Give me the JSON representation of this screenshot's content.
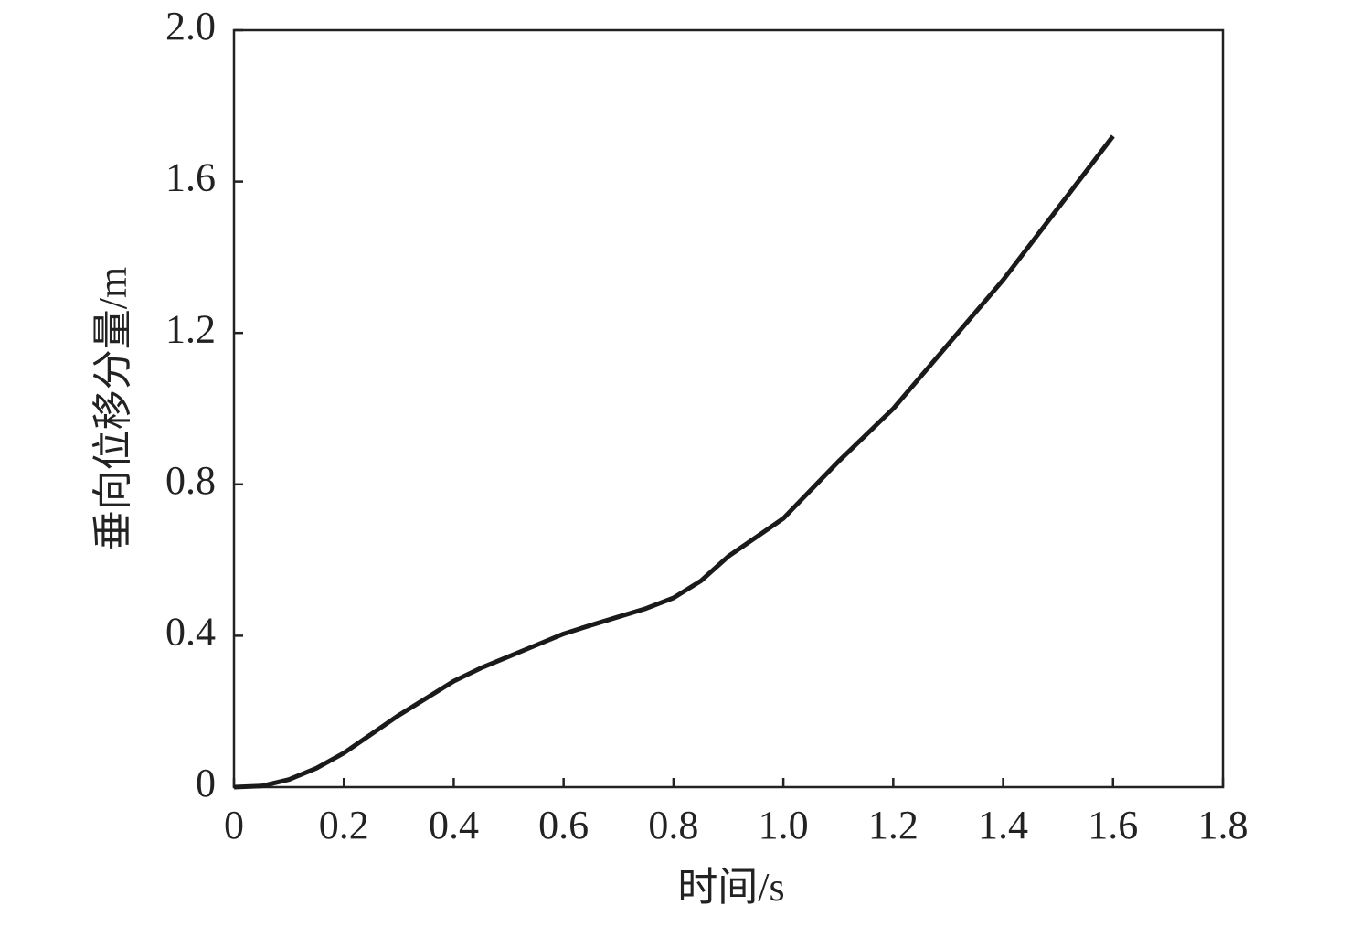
{
  "chart_data": {
    "type": "line",
    "x_label": "时间/s",
    "y_label": "垂向位移分量/m",
    "x": [
      0,
      0.05,
      0.1,
      0.15,
      0.2,
      0.25,
      0.3,
      0.35,
      0.4,
      0.45,
      0.5,
      0.55,
      0.6,
      0.65,
      0.7,
      0.75,
      0.8,
      0.85,
      0.9,
      0.95,
      1.0,
      1.1,
      1.2,
      1.3,
      1.4,
      1.5,
      1.6
    ],
    "series": [
      {
        "color": "#1a1a1a",
        "values": [
          0,
          0.003,
          0.02,
          0.05,
          0.09,
          0.14,
          0.19,
          0.235,
          0.28,
          0.315,
          0.345,
          0.375,
          0.405,
          0.428,
          0.45,
          0.472,
          0.5,
          0.545,
          0.61,
          0.66,
          0.71,
          0.86,
          1.0,
          1.17,
          1.34,
          1.53,
          1.72
        ]
      }
    ],
    "xlim": [
      0,
      1.8
    ],
    "ylim": [
      0,
      2.0
    ],
    "xticks": [
      0,
      0.2,
      0.4,
      0.6,
      0.8,
      {
        "value": 1,
        "label": "1.0"
      },
      1.2,
      1.4,
      1.6,
      1.8
    ],
    "yticks": [
      0,
      0.4,
      0.8,
      1.2,
      1.6,
      {
        "value": 2,
        "label": "2.0"
      }
    ],
    "grid": false
  }
}
